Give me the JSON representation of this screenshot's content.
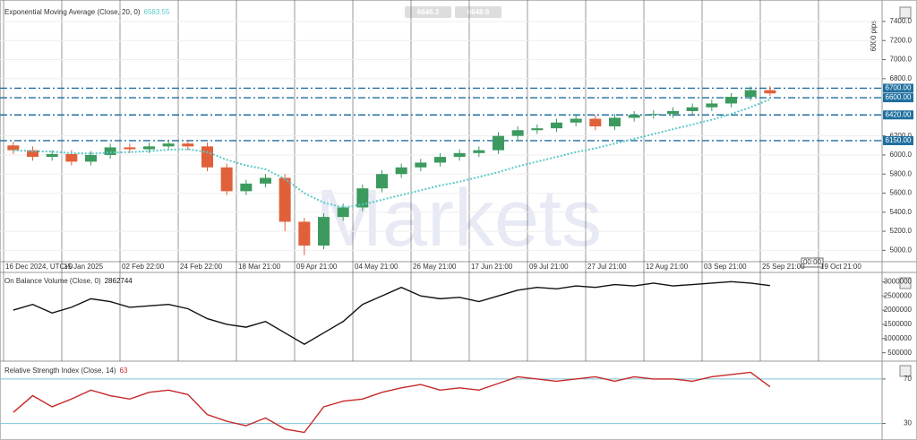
{
  "toolbar": {
    "bid": "6646.3",
    "ask": "6648.9"
  },
  "pips_label": "6000 pips",
  "cursor_time": "00:00",
  "watermark": "Markets",
  "chart_data": [
    {
      "type": "candlestick",
      "title": "Exponential Moving Average (Close, 20, 0)",
      "ema_value": 6583.55,
      "categories": [
        "16 Dec 2024, UTC+0",
        null,
        null,
        "15 Jan 2025",
        null,
        null,
        "02 Feb 22:00",
        null,
        null,
        "24 Feb 22:00",
        null,
        null,
        "18 Mar 21:00",
        null,
        null,
        "09 Apr 21:00",
        null,
        null,
        "04 May 21:00",
        null,
        null,
        "26 May 21:00",
        null,
        null,
        "17 Jun 21:00",
        null,
        null,
        "09 Jul 21:00",
        null,
        null,
        "27 Jul 21:00",
        null,
        null,
        "12 Aug 21:00",
        null,
        null,
        "03 Sep 21:00",
        null,
        null,
        "25 Sep 21:00",
        null,
        null,
        "19 Oct 21:00",
        null,
        null
      ],
      "open": [
        6100,
        6050,
        5980,
        6010,
        5930,
        6000,
        6080,
        6060,
        6090,
        6120,
        6090,
        5870,
        5620,
        5700,
        5760,
        5300,
        5050,
        5350,
        5450,
        5650,
        5800,
        5870,
        5920,
        5980,
        6020,
        6050,
        6200,
        6260,
        6280,
        6340,
        6380,
        6300,
        6390,
        6420,
        6430,
        6460,
        6500,
        6540,
        6610,
        6680,
        null,
        null,
        null,
        null,
        null
      ],
      "high": [
        6140,
        6090,
        6050,
        6050,
        6040,
        6120,
        6120,
        6130,
        6160,
        6160,
        6130,
        5910,
        5740,
        5800,
        5800,
        5340,
        5390,
        5490,
        5690,
        5840,
        5910,
        5960,
        6020,
        6060,
        6090,
        6240,
        6300,
        6320,
        6380,
        6420,
        6420,
        6430,
        6460,
        6470,
        6500,
        6540,
        6580,
        6650,
        6720,
        6720,
        null,
        null,
        null,
        null,
        null
      ],
      "low": [
        6010,
        5940,
        5940,
        5890,
        5890,
        5960,
        6020,
        6020,
        6050,
        6050,
        5830,
        5580,
        5580,
        5660,
        5200,
        4950,
        5010,
        5310,
        5410,
        5610,
        5760,
        5830,
        5880,
        5940,
        5980,
        6010,
        6160,
        6220,
        6240,
        6300,
        6260,
        6260,
        6350,
        6380,
        6390,
        6420,
        6460,
        6500,
        6570,
        6620,
        null,
        null,
        null,
        null,
        null
      ],
      "close": [
        6050,
        5980,
        6010,
        5930,
        6000,
        6080,
        6060,
        6090,
        6120,
        6090,
        5870,
        5620,
        5700,
        5760,
        5300,
        5050,
        5350,
        5450,
        5650,
        5800,
        5870,
        5920,
        5980,
        6020,
        6050,
        6200,
        6260,
        6280,
        6340,
        6380,
        6300,
        6390,
        6420,
        6430,
        6460,
        6500,
        6540,
        6610,
        6680,
        6646,
        null,
        null,
        null,
        null,
        null
      ],
      "up_color": "#3c9a5f",
      "down_color": "#e0603a",
      "series": [
        {
          "name": "EMA",
          "color": "#5cc8c8",
          "values": [
            6050,
            6040,
            6035,
            6020,
            6015,
            6025,
            6030,
            6040,
            6055,
            6060,
            6030,
            5950,
            5890,
            5850,
            5750,
            5600,
            5500,
            5450,
            5480,
            5530,
            5580,
            5630,
            5680,
            5720,
            5770,
            5820,
            5880,
            5930,
            5980,
            6030,
            6070,
            6120,
            6170,
            6220,
            6270,
            6320,
            6370,
            6430,
            6500,
            6583.55,
            null,
            null,
            null,
            null,
            null
          ]
        }
      ],
      "levels": [
        {
          "value": 6700,
          "label": "6700.00"
        },
        {
          "value": 6600,
          "label": "6600.00"
        },
        {
          "value": 6420,
          "label": "6420.00"
        },
        {
          "value": 6150,
          "label": "6150.00"
        }
      ],
      "level_color": "#1f6f9f",
      "ylim": [
        4900,
        7550
      ],
      "yticks": [
        {
          "value": 5000,
          "label": "5000.0"
        },
        {
          "value": 5200,
          "label": "5200.0"
        },
        {
          "value": 5400,
          "label": "5400.0"
        },
        {
          "value": 5600,
          "label": "5600.0"
        },
        {
          "value": 5800,
          "label": "5800.0"
        },
        {
          "value": 6000,
          "label": "6000.0"
        },
        {
          "value": 6200,
          "label": "6200.0"
        },
        {
          "value": 6800,
          "label": "6800.0"
        },
        {
          "value": 7000,
          "label": "7000.0"
        },
        {
          "value": 7200,
          "label": "7200.0"
        },
        {
          "value": 7400,
          "label": "7400.0"
        }
      ],
      "grid": true
    },
    {
      "type": "line",
      "title": "On Balance Volume (Close, 0)",
      "last_value": 2862744,
      "series": [
        {
          "name": "OBV",
          "color": "#111111",
          "values": [
            2000000,
            2200000,
            1900000,
            2100000,
            2400000,
            2300000,
            2100000,
            2150000,
            2200000,
            2050000,
            1700000,
            1500000,
            1400000,
            1600000,
            1200000,
            800000,
            1200000,
            1600000,
            2200000,
            2500000,
            2800000,
            2500000,
            2400000,
            2450000,
            2300000,
            2500000,
            2700000,
            2800000,
            2750000,
            2850000,
            2800000,
            2900000,
            2850000,
            2950000,
            2850000,
            2900000,
            2950000,
            3000000,
            2950000,
            2862744,
            null,
            null,
            null,
            null,
            null
          ]
        }
      ],
      "ylim": [
        300000,
        3200000
      ],
      "yticks": [
        500000,
        1000000,
        1500000,
        2000000,
        2500000,
        3000000
      ]
    },
    {
      "type": "line",
      "title": "Relative Strength Index (Close, 14)",
      "last_value": 63,
      "series": [
        {
          "name": "RSI",
          "color": "#c62828",
          "values": [
            40,
            55,
            45,
            52,
            60,
            55,
            52,
            58,
            60,
            56,
            38,
            32,
            28,
            35,
            25,
            22,
            45,
            50,
            52,
            58,
            62,
            65,
            60,
            62,
            60,
            66,
            72,
            70,
            68,
            70,
            72,
            68,
            72,
            70,
            70,
            68,
            72,
            74,
            76,
            63,
            null,
            null,
            null,
            null,
            null
          ]
        }
      ],
      "ylim": [
        20,
        82
      ],
      "yticks": [
        30,
        70
      ],
      "level_color": "#7fc4d8"
    }
  ]
}
